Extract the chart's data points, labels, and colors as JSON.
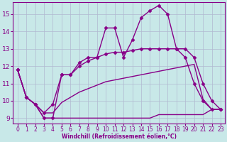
{
  "xlabel": "Windchill (Refroidissement éolien,°C)",
  "xlim": [
    -0.5,
    23.5
  ],
  "ylim": [
    8.7,
    15.7
  ],
  "xticks": [
    0,
    1,
    2,
    3,
    4,
    5,
    6,
    7,
    8,
    9,
    10,
    11,
    12,
    13,
    14,
    15,
    16,
    17,
    18,
    19,
    20,
    21,
    22,
    23
  ],
  "yticks": [
    9,
    10,
    11,
    12,
    13,
    14,
    15
  ],
  "background_color": "#c8e8e8",
  "grid_color": "#b0b8d0",
  "line_color": "#880088",
  "series": [
    {
      "x": [
        0,
        1,
        2,
        3,
        4,
        5,
        6,
        7,
        8,
        9,
        10,
        11,
        12,
        13,
        14,
        15,
        16,
        17,
        18,
        19,
        20,
        21,
        22,
        23
      ],
      "y": [
        11.8,
        10.2,
        9.8,
        9.0,
        9.0,
        9.0,
        9.0,
        9.0,
        9.0,
        9.0,
        9.0,
        9.0,
        9.0,
        9.0,
        9.0,
        9.0,
        9.2,
        9.2,
        9.2,
        9.2,
        9.2,
        9.2,
        9.5,
        9.5
      ],
      "marker": "",
      "linestyle": "-",
      "linewidth": 1.0
    },
    {
      "x": [
        0,
        1,
        2,
        3,
        4,
        5,
        6,
        7,
        8,
        9,
        10,
        11,
        12,
        13,
        14,
        15,
        16,
        17,
        18,
        19,
        20,
        21,
        22,
        23
      ],
      "y": [
        11.8,
        10.2,
        9.8,
        9.3,
        9.3,
        9.9,
        10.2,
        10.5,
        10.7,
        10.9,
        11.1,
        11.2,
        11.3,
        11.4,
        11.5,
        11.6,
        11.7,
        11.8,
        11.9,
        12.0,
        12.1,
        10.1,
        9.5,
        9.5
      ],
      "marker": "",
      "linestyle": "-",
      "linewidth": 1.0
    },
    {
      "x": [
        0,
        1,
        2,
        3,
        4,
        5,
        6,
        7,
        8,
        9,
        10,
        11,
        12,
        13,
        14,
        15,
        16,
        17,
        18,
        19,
        20,
        21,
        22,
        23
      ],
      "y": [
        11.8,
        10.2,
        9.8,
        9.3,
        9.8,
        11.5,
        11.5,
        12.0,
        12.3,
        12.5,
        12.7,
        12.8,
        12.8,
        12.9,
        13.0,
        13.0,
        13.0,
        13.0,
        13.0,
        13.0,
        12.5,
        11.0,
        10.0,
        9.5
      ],
      "marker": "D",
      "linestyle": "-",
      "linewidth": 1.0
    },
    {
      "x": [
        0,
        1,
        2,
        3,
        4,
        5,
        6,
        7,
        8,
        9,
        10,
        11,
        12,
        13,
        14,
        15,
        16,
        17,
        18,
        19,
        20,
        21,
        22,
        23
      ],
      "y": [
        11.8,
        10.2,
        9.8,
        9.0,
        9.0,
        11.5,
        11.5,
        12.2,
        12.5,
        12.5,
        14.2,
        14.2,
        12.5,
        13.5,
        14.8,
        15.2,
        15.5,
        15.0,
        13.0,
        12.5,
        11.0,
        10.0,
        9.5,
        9.5
      ],
      "marker": "D",
      "linestyle": "-",
      "linewidth": 1.0
    }
  ]
}
